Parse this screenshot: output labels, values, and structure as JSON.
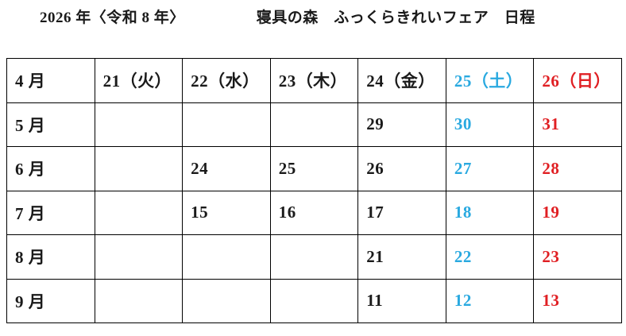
{
  "title": {
    "year": "2026 年〈令和 8 年〉",
    "event": "寝具の森　ふっくらきれいフェア　日程"
  },
  "colors": {
    "ink": "#1a1a1a",
    "saturday": "#29a9e0",
    "sunday": "#e01f23"
  },
  "table": {
    "header": [
      "4 月",
      "21（火）",
      "22（水）",
      "23（木）",
      "24（金）",
      "25（土）",
      "26（日）"
    ],
    "column_roles": [
      "month",
      "weekday",
      "weekday",
      "weekday",
      "weekday",
      "saturday",
      "sunday"
    ],
    "rows": [
      {
        "month": "5 月",
        "days": [
          "",
          "",
          "",
          "29",
          "30",
          "31"
        ]
      },
      {
        "month": "6 月",
        "days": [
          "",
          "24",
          "25",
          "26",
          "27",
          "28"
        ]
      },
      {
        "month": "7 月",
        "days": [
          "",
          "15",
          "16",
          "17",
          "18",
          "19"
        ]
      },
      {
        "month": "8 月",
        "days": [
          "",
          "",
          "",
          "21",
          "22",
          "23"
        ]
      },
      {
        "month": "9 月",
        "days": [
          "",
          "",
          "",
          "11",
          "12",
          "13"
        ]
      }
    ]
  }
}
